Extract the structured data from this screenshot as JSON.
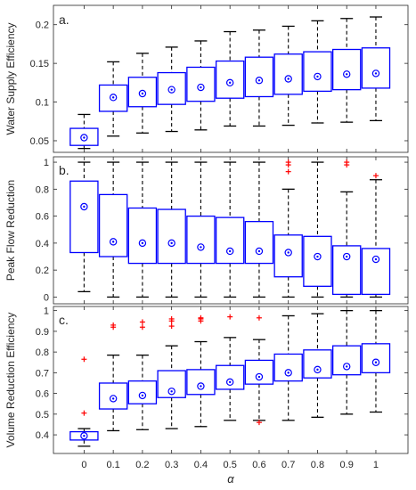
{
  "chart_data": [
    {
      "type": "boxplot",
      "panel_label": "a.",
      "ylabel": "Water Supply Efficiency",
      "xlabel": "",
      "categories": [
        "0",
        "0.1",
        "0.2",
        "0.3",
        "0.4",
        "0.5",
        "0.6",
        "0.7",
        "0.8",
        "0.9",
        "1"
      ],
      "ylim": [
        0.035,
        0.225
      ],
      "yticks": [
        0.05,
        0.1,
        0.15,
        0.2
      ],
      "ytick_labels": [
        "0.05",
        "0.1",
        "0.15",
        "0.2"
      ],
      "grid": false,
      "boxes": [
        {
          "min": 0.04,
          "q1": 0.044,
          "median": 0.053,
          "q3": 0.066,
          "max": 0.084,
          "mean": 0.054,
          "outliers": []
        },
        {
          "min": 0.056,
          "q1": 0.088,
          "median": 0.105,
          "q3": 0.122,
          "max": 0.152,
          "mean": 0.106,
          "outliers": []
        },
        {
          "min": 0.06,
          "q1": 0.094,
          "median": 0.111,
          "q3": 0.132,
          "max": 0.163,
          "mean": 0.111,
          "outliers": []
        },
        {
          "min": 0.062,
          "q1": 0.097,
          "median": 0.115,
          "q3": 0.138,
          "max": 0.171,
          "mean": 0.116,
          "outliers": []
        },
        {
          "min": 0.064,
          "q1": 0.101,
          "median": 0.119,
          "q3": 0.145,
          "max": 0.179,
          "mean": 0.119,
          "outliers": []
        },
        {
          "min": 0.069,
          "q1": 0.105,
          "median": 0.125,
          "q3": 0.153,
          "max": 0.191,
          "mean": 0.125,
          "outliers": []
        },
        {
          "min": 0.069,
          "q1": 0.107,
          "median": 0.127,
          "q3": 0.158,
          "max": 0.193,
          "mean": 0.128,
          "outliers": []
        },
        {
          "min": 0.07,
          "q1": 0.11,
          "median": 0.13,
          "q3": 0.162,
          "max": 0.198,
          "mean": 0.13,
          "outliers": []
        },
        {
          "min": 0.073,
          "q1": 0.114,
          "median": 0.133,
          "q3": 0.165,
          "max": 0.205,
          "mean": 0.133,
          "outliers": []
        },
        {
          "min": 0.074,
          "q1": 0.116,
          "median": 0.135,
          "q3": 0.168,
          "max": 0.208,
          "mean": 0.136,
          "outliers": []
        },
        {
          "min": 0.076,
          "q1": 0.118,
          "median": 0.137,
          "q3": 0.17,
          "max": 0.21,
          "mean": 0.137,
          "outliers": []
        }
      ]
    },
    {
      "type": "boxplot",
      "panel_label": "b.",
      "ylabel": "Peak Flow Reduction",
      "xlabel": "",
      "categories": [
        "0",
        "0.1",
        "0.2",
        "0.3",
        "0.4",
        "0.5",
        "0.6",
        "0.7",
        "0.8",
        "0.9",
        "1"
      ],
      "ylim": [
        -0.05,
        1.04
      ],
      "yticks": [
        0,
        0.2,
        0.4,
        0.6,
        0.8,
        1
      ],
      "ytick_labels": [
        "0",
        "0.2",
        "0.4",
        "0.6",
        "0.8",
        "1"
      ],
      "grid": false,
      "boxes": [
        {
          "min": 0.04,
          "q1": 0.33,
          "median": 0.64,
          "q3": 0.86,
          "max": 1.0,
          "mean": 0.67,
          "outliers": []
        },
        {
          "min": 0.0,
          "q1": 0.3,
          "median": 0.41,
          "q3": 0.76,
          "max": 1.0,
          "mean": 0.41,
          "outliers": []
        },
        {
          "min": 0.0,
          "q1": 0.25,
          "median": 0.4,
          "q3": 0.66,
          "max": 1.0,
          "mean": 0.4,
          "outliers": []
        },
        {
          "min": 0.0,
          "q1": 0.25,
          "median": 0.4,
          "q3": 0.65,
          "max": 1.0,
          "mean": 0.4,
          "outliers": []
        },
        {
          "min": 0.0,
          "q1": 0.25,
          "median": 0.36,
          "q3": 0.6,
          "max": 1.0,
          "mean": 0.37,
          "outliers": []
        },
        {
          "min": 0.0,
          "q1": 0.25,
          "median": 0.34,
          "q3": 0.59,
          "max": 1.0,
          "mean": 0.34,
          "outliers": []
        },
        {
          "min": 0.0,
          "q1": 0.25,
          "median": 0.34,
          "q3": 0.56,
          "max": 1.0,
          "mean": 0.34,
          "outliers": []
        },
        {
          "min": 0.0,
          "q1": 0.15,
          "median": 0.32,
          "q3": 0.46,
          "max": 0.8,
          "mean": 0.33,
          "outliers": [
            0.93,
            0.98,
            1.0
          ]
        },
        {
          "min": 0.0,
          "q1": 0.08,
          "median": 0.3,
          "q3": 0.45,
          "max": 1.0,
          "mean": 0.3,
          "outliers": []
        },
        {
          "min": 0.0,
          "q1": 0.02,
          "median": 0.3,
          "q3": 0.38,
          "max": 0.78,
          "mean": 0.3,
          "outliers": [
            0.98,
            1.0
          ]
        },
        {
          "min": 0.0,
          "q1": 0.02,
          "median": 0.28,
          "q3": 0.36,
          "max": 0.87,
          "mean": 0.28,
          "outliers": [
            0.9
          ]
        }
      ]
    },
    {
      "type": "boxplot",
      "panel_label": "c.",
      "ylabel": "Volume Reduction Efficiency",
      "xlabel": "α",
      "categories": [
        "0",
        "0.1",
        "0.2",
        "0.3",
        "0.4",
        "0.5",
        "0.6",
        "0.7",
        "0.8",
        "0.9",
        "1"
      ],
      "ylim": [
        0.31,
        1.02
      ],
      "yticks": [
        0.4,
        0.5,
        0.6,
        0.7,
        0.8,
        0.9,
        1
      ],
      "ytick_labels": [
        "0.4",
        "0.5",
        "0.6",
        "0.7",
        "0.8",
        "0.9",
        "1"
      ],
      "grid": false,
      "boxes": [
        {
          "min": 0.345,
          "q1": 0.375,
          "median": 0.39,
          "q3": 0.415,
          "max": 0.43,
          "mean": 0.395,
          "outliers": [
            0.505,
            0.765
          ]
        },
        {
          "min": 0.42,
          "q1": 0.525,
          "median": 0.575,
          "q3": 0.65,
          "max": 0.785,
          "mean": 0.575,
          "outliers": [
            0.92,
            0.93
          ]
        },
        {
          "min": 0.425,
          "q1": 0.55,
          "median": 0.59,
          "q3": 0.66,
          "max": 0.785,
          "mean": 0.59,
          "outliers": [
            0.92,
            0.945
          ]
        },
        {
          "min": 0.43,
          "q1": 0.58,
          "median": 0.61,
          "q3": 0.71,
          "max": 0.83,
          "mean": 0.61,
          "outliers": [
            0.925,
            0.95,
            0.96
          ]
        },
        {
          "min": 0.44,
          "q1": 0.595,
          "median": 0.635,
          "q3": 0.715,
          "max": 0.85,
          "mean": 0.635,
          "outliers": [
            0.95,
            0.96,
            0.965
          ]
        },
        {
          "min": 0.47,
          "q1": 0.62,
          "median": 0.655,
          "q3": 0.735,
          "max": 0.87,
          "mean": 0.655,
          "outliers": [
            0.97
          ]
        },
        {
          "min": 0.47,
          "q1": 0.645,
          "median": 0.68,
          "q3": 0.76,
          "max": 0.86,
          "mean": 0.68,
          "outliers": [
            0.46,
            0.965
          ]
        },
        {
          "min": 0.47,
          "q1": 0.66,
          "median": 0.7,
          "q3": 0.79,
          "max": 0.975,
          "mean": 0.7,
          "outliers": []
        },
        {
          "min": 0.485,
          "q1": 0.675,
          "median": 0.715,
          "q3": 0.81,
          "max": 0.985,
          "mean": 0.715,
          "outliers": []
        },
        {
          "min": 0.5,
          "q1": 0.69,
          "median": 0.73,
          "q3": 0.83,
          "max": 1.0,
          "mean": 0.73,
          "outliers": []
        },
        {
          "min": 0.51,
          "q1": 0.7,
          "median": 0.75,
          "q3": 0.84,
          "max": 1.0,
          "mean": 0.75,
          "outliers": []
        }
      ]
    }
  ],
  "colors": {
    "box": "#0000ff",
    "whisker": "#000000",
    "outlier": "#ff0000",
    "axes": "#262626"
  }
}
